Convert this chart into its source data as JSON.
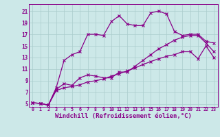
{
  "background_color": "#cce8e8",
  "grid_color": "#aacccc",
  "line_color": "#880088",
  "xlabel": "Windchill (Refroidissement éolien,°C)",
  "xlabel_fontsize": 6.5,
  "ytick_labels": [
    "5",
    "7",
    "9",
    "11",
    "13",
    "15",
    "17",
    "19",
    "21"
  ],
  "ytick_values": [
    5,
    7,
    9,
    11,
    13,
    15,
    17,
    19,
    21
  ],
  "xtick_labels": [
    "0",
    "1",
    "2",
    "3",
    "4",
    "5",
    "6",
    "7",
    "8",
    "9",
    "10",
    "11",
    "12",
    "13",
    "14",
    "15",
    "16",
    "17",
    "18",
    "19",
    "20",
    "21",
    "22",
    "23"
  ],
  "xmin": -0.5,
  "xmax": 23.5,
  "ymin": 4.5,
  "ymax": 22.2,
  "curve_top_x": [
    0,
    1,
    2,
    3,
    4,
    5,
    6,
    7,
    8,
    9,
    10,
    11,
    12,
    13,
    14,
    15,
    16,
    17,
    18,
    19,
    20,
    21,
    22,
    23
  ],
  "curve_top_y": [
    5.2,
    5.1,
    4.8,
    7.8,
    12.5,
    13.5,
    14.0,
    17.0,
    17.0,
    16.8,
    19.2,
    20.2,
    18.8,
    18.5,
    18.5,
    20.7,
    21.0,
    20.5,
    17.5,
    16.8,
    17.0,
    17.0,
    15.8,
    15.5
  ],
  "curve_mid_x": [
    0,
    1,
    2,
    3,
    4,
    5,
    6,
    7,
    8,
    9,
    10,
    11,
    12,
    13,
    14,
    15,
    16,
    17,
    18,
    19,
    20,
    21,
    22,
    23
  ],
  "curve_mid_y": [
    5.2,
    5.1,
    4.8,
    7.5,
    8.5,
    8.2,
    9.5,
    10.0,
    9.8,
    9.5,
    9.5,
    10.5,
    10.5,
    11.5,
    12.5,
    13.5,
    14.5,
    15.2,
    16.0,
    16.5,
    16.8,
    16.8,
    15.5,
    14.0
  ],
  "curve_bot_x": [
    0,
    1,
    2,
    3,
    4,
    5,
    6,
    7,
    8,
    9,
    10,
    11,
    12,
    13,
    14,
    15,
    16,
    17,
    18,
    19,
    20,
    21,
    22,
    23
  ],
  "curve_bot_y": [
    5.2,
    5.1,
    4.8,
    7.3,
    7.8,
    8.0,
    8.3,
    8.8,
    9.0,
    9.3,
    9.8,
    10.2,
    10.7,
    11.2,
    11.8,
    12.3,
    12.8,
    13.2,
    13.5,
    14.0,
    14.0,
    12.8,
    15.0,
    13.0
  ]
}
